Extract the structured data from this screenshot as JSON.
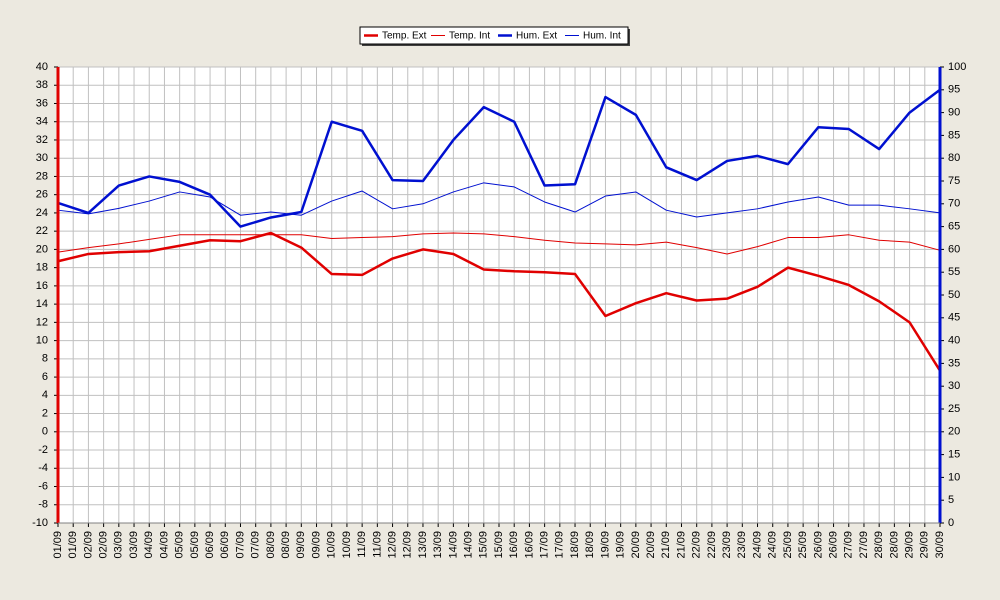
{
  "chart_data": {
    "type": "line",
    "categories": [
      "01/09",
      "02/09",
      "03/09",
      "04/09",
      "05/09",
      "06/09",
      "07/09",
      "08/09",
      "09/09",
      "10/09",
      "11/09",
      "12/09",
      "13/09",
      "14/09",
      "15/09",
      "16/09",
      "17/09",
      "18/09",
      "19/09",
      "20/09",
      "21/09",
      "22/09",
      "23/09",
      "24/09",
      "25/09",
      "26/09",
      "27/09",
      "28/09",
      "29/09",
      "30/09"
    ],
    "xticks": [
      {
        "value": 0,
        "label": "01/09"
      },
      {
        "value": 0.5,
        "label": "01/09"
      },
      {
        "value": 1,
        "label": "02/09"
      },
      {
        "value": 1.5,
        "label": "02/09"
      },
      {
        "value": 2,
        "label": "03/09"
      },
      {
        "value": 2.5,
        "label": "03/09"
      },
      {
        "value": 3,
        "label": "04/09"
      },
      {
        "value": 3.5,
        "label": "04/09"
      },
      {
        "value": 4,
        "label": "05/09"
      },
      {
        "value": 4.5,
        "label": "05/09"
      },
      {
        "value": 5,
        "label": "06/09"
      },
      {
        "value": 5.5,
        "label": "06/09"
      },
      {
        "value": 6,
        "label": "07/09"
      },
      {
        "value": 6.5,
        "label": "07/09"
      },
      {
        "value": 7,
        "label": "08/09"
      },
      {
        "value": 7.5,
        "label": "08/09"
      },
      {
        "value": 8,
        "label": "09/09"
      },
      {
        "value": 8.5,
        "label": "09/09"
      },
      {
        "value": 9,
        "label": "10/09"
      },
      {
        "value": 9.5,
        "label": "10/09"
      },
      {
        "value": 10,
        "label": "11/09"
      },
      {
        "value": 10.5,
        "label": "11/09"
      },
      {
        "value": 11,
        "label": "12/09"
      },
      {
        "value": 11.5,
        "label": "12/09"
      },
      {
        "value": 12,
        "label": "13/09"
      },
      {
        "value": 12.5,
        "label": "13/09"
      },
      {
        "value": 13,
        "label": "14/09"
      },
      {
        "value": 13.5,
        "label": "14/09"
      },
      {
        "value": 14,
        "label": "15/09"
      },
      {
        "value": 14.5,
        "label": "15/09"
      },
      {
        "value": 15,
        "label": "16/09"
      },
      {
        "value": 15.5,
        "label": "16/09"
      },
      {
        "value": 16,
        "label": "17/09"
      },
      {
        "value": 16.5,
        "label": "17/09"
      },
      {
        "value": 17,
        "label": "18/09"
      },
      {
        "value": 17.5,
        "label": "18/09"
      },
      {
        "value": 18,
        "label": "19/09"
      },
      {
        "value": 18.5,
        "label": "19/09"
      },
      {
        "value": 19,
        "label": "20/09"
      },
      {
        "value": 19.5,
        "label": "20/09"
      },
      {
        "value": 20,
        "label": "21/09"
      },
      {
        "value": 20.5,
        "label": "21/09"
      },
      {
        "value": 21,
        "label": "22/09"
      },
      {
        "value": 21.5,
        "label": "22/09"
      },
      {
        "value": 22,
        "label": "23/09"
      },
      {
        "value": 22.5,
        "label": "23/09"
      },
      {
        "value": 23,
        "label": "24/09"
      },
      {
        "value": 23.5,
        "label": "24/09"
      },
      {
        "value": 24,
        "label": "25/09"
      },
      {
        "value": 24.5,
        "label": "25/09"
      },
      {
        "value": 25,
        "label": "26/09"
      },
      {
        "value": 25.5,
        "label": "26/09"
      },
      {
        "value": 26,
        "label": "27/09"
      },
      {
        "value": 26.5,
        "label": "27/09"
      },
      {
        "value": 27,
        "label": "28/09"
      },
      {
        "value": 27.5,
        "label": "28/09"
      },
      {
        "value": 28,
        "label": "29/09"
      },
      {
        "value": 28.5,
        "label": "29/09"
      },
      {
        "value": 29,
        "label": "30/09"
      }
    ],
    "ylim": [
      -10,
      40
    ],
    "yticks": [
      -10,
      -8,
      -6,
      -4,
      -2,
      0,
      2,
      4,
      6,
      8,
      10,
      12,
      14,
      16,
      18,
      20,
      22,
      24,
      26,
      28,
      30,
      32,
      34,
      36,
      38,
      40
    ],
    "y2lim": [
      0,
      100
    ],
    "y2ticks": [
      0,
      5,
      10,
      15,
      20,
      25,
      30,
      35,
      40,
      45,
      50,
      55,
      60,
      65,
      70,
      75,
      80,
      85,
      90,
      95,
      100
    ],
    "grid": true,
    "legend": "top",
    "series": [
      {
        "name": "Temp. Ext",
        "color": "#e00000",
        "line_width": 2.5,
        "values": [
          18.7,
          19.5,
          19.7,
          19.8,
          20.4,
          21.0,
          20.9,
          21.8,
          20.2,
          17.3,
          17.2,
          19.0,
          20.0,
          19.5,
          17.8,
          17.6,
          17.5,
          17.3,
          12.7,
          14.1,
          15.2,
          14.4,
          14.6,
          15.9,
          18.0,
          17.1,
          16.1,
          14.3,
          12.0,
          6.7
        ]
      },
      {
        "name": "Temp. Int",
        "color": "#e00000",
        "line_width": 1,
        "values": [
          19.7,
          20.2,
          20.6,
          21.1,
          21.6,
          21.6,
          21.6,
          21.6,
          21.6,
          21.2,
          21.3,
          21.4,
          21.7,
          21.8,
          21.7,
          21.4,
          21.0,
          20.7,
          20.6,
          20.5,
          20.8,
          20.2,
          19.5,
          20.3,
          21.3,
          21.3,
          21.6,
          21.0,
          20.8,
          19.9
        ]
      },
      {
        "name": "Hum. Ext",
        "color": "#0010d0",
        "line_width": 2.5,
        "axis": "y2",
        "values": [
          70.2,
          68,
          74,
          76,
          74.8,
          72,
          65,
          67,
          68.2,
          88,
          86,
          75.2,
          75,
          84,
          91.2,
          88,
          74,
          74.3,
          93.4,
          89.5,
          78,
          75.2,
          79.4,
          80.5,
          78.7,
          86.8,
          86.4,
          82,
          90,
          95
        ]
      },
      {
        "name": "Hum. Int",
        "color": "#0010d0",
        "line_width": 1,
        "axis": "y2",
        "values": [
          68.6,
          67.8,
          69,
          70.6,
          72.6,
          71.5,
          67.5,
          68.2,
          67.5,
          70.6,
          72.8,
          68.9,
          70,
          72.6,
          74.6,
          73.7,
          70.4,
          68.2,
          71.7,
          72.6,
          68.6,
          67.1,
          68,
          68.9,
          70.4,
          71.5,
          69.7,
          69.7,
          68.9,
          68
        ]
      }
    ]
  }
}
